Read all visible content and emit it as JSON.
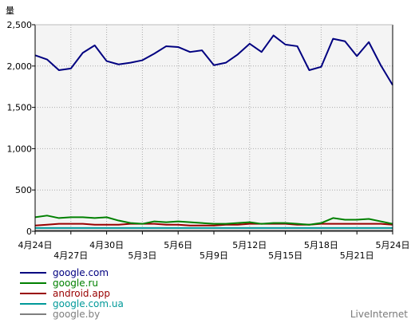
{
  "chart_data": {
    "type": "line",
    "ylabel": "量",
    "ylim": [
      0,
      2500
    ],
    "yticks": [
      0,
      500,
      1000,
      1500,
      2000,
      2500
    ],
    "ytick_labels": [
      "0",
      "500",
      "1,000",
      "1,500",
      "2,000",
      "2,500"
    ],
    "grid": true,
    "legend_position": "bottom-left",
    "x": [
      "4月24日",
      "4月25日",
      "4月26日",
      "4月27日",
      "4月28日",
      "4月29日",
      "4月30日",
      "5月1日",
      "5月2日",
      "5月3日",
      "5月4日",
      "5月5日",
      "5月6日",
      "5月7日",
      "5月8日",
      "5月9日",
      "5月10日",
      "5月11日",
      "5月12日",
      "5月13日",
      "5月14日",
      "5月15日",
      "5月16日",
      "5月17日",
      "5月18日",
      "5月19日",
      "5月20日",
      "5月21日",
      "5月22日",
      "5月23日",
      "5月24日"
    ],
    "xticks": [
      {
        "index": 0,
        "label": "4月24日",
        "row": 1
      },
      {
        "index": 3,
        "label": "4月27日",
        "row": 2
      },
      {
        "index": 6,
        "label": "4月30日",
        "row": 1
      },
      {
        "index": 9,
        "label": "5月3日",
        "row": 2
      },
      {
        "index": 12,
        "label": "5月6日",
        "row": 1
      },
      {
        "index": 15,
        "label": "5月9日",
        "row": 2
      },
      {
        "index": 18,
        "label": "5月12日",
        "row": 1
      },
      {
        "index": 21,
        "label": "5月15日",
        "row": 2
      },
      {
        "index": 24,
        "label": "5月18日",
        "row": 1
      },
      {
        "index": 27,
        "label": "5月21日",
        "row": 2
      },
      {
        "index": 30,
        "label": "5月24日",
        "row": 1
      }
    ],
    "series": [
      {
        "name": "google.com",
        "color": "#000080",
        "values": [
          2130,
          2080,
          1950,
          1970,
          2160,
          2250,
          2060,
          2020,
          2040,
          2070,
          2150,
          2240,
          2230,
          2170,
          2190,
          2010,
          2040,
          2140,
          2270,
          2170,
          2370,
          2260,
          2240,
          1950,
          1990,
          2330,
          2300,
          2120,
          2290,
          2010,
          1770
        ]
      },
      {
        "name": "google.ru",
        "color": "#008000",
        "values": [
          170,
          190,
          160,
          170,
          170,
          160,
          170,
          130,
          100,
          90,
          120,
          110,
          120,
          110,
          100,
          90,
          90,
          100,
          110,
          90,
          100,
          100,
          90,
          80,
          100,
          160,
          140,
          140,
          150,
          120,
          90
        ]
      },
      {
        "name": "android.app",
        "color": "#990000",
        "values": [
          70,
          80,
          90,
          90,
          90,
          80,
          80,
          80,
          90,
          90,
          90,
          80,
          80,
          70,
          70,
          70,
          80,
          80,
          90,
          90,
          90,
          90,
          80,
          80,
          90,
          90,
          90,
          90,
          90,
          90,
          80
        ]
      },
      {
        "name": "google.com.ua",
        "color": "#009999",
        "values": [
          40,
          40,
          40,
          40,
          40,
          40,
          40,
          40,
          40,
          40,
          40,
          40,
          40,
          40,
          40,
          40,
          40,
          40,
          40,
          40,
          40,
          40,
          40,
          40,
          40,
          40,
          40,
          40,
          40,
          40,
          40
        ]
      },
      {
        "name": "google.by",
        "color": "#7f7f7f",
        "values": [
          10,
          10,
          10,
          10,
          10,
          10,
          10,
          10,
          10,
          10,
          10,
          10,
          10,
          10,
          10,
          10,
          10,
          10,
          10,
          10,
          10,
          10,
          10,
          10,
          10,
          10,
          10,
          10,
          10,
          10,
          10
        ]
      }
    ]
  },
  "footer": {
    "brand": "LiveInternet"
  }
}
